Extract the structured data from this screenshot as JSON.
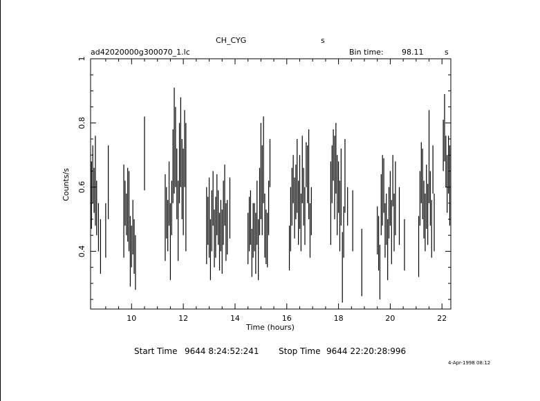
{
  "header": {
    "object": "CH_CYG",
    "object_unit": "s",
    "filename": "ad42020000g300070_1.lc",
    "bin_time_label": "Bin time:",
    "bin_time_value": "98.11",
    "bin_time_unit": "s"
  },
  "footer": {
    "start_label": "Start Time",
    "start_value": "9644  8:24:52:241",
    "stop_label": "Stop Time",
    "stop_value": "9644 22:20:28:996",
    "date_stamp": "4-Apr-1998 08:12"
  },
  "chart_data": {
    "type": "line",
    "xlabel": "Time (hours)",
    "ylabel": "Counts/s",
    "xlim": [
      8.415,
      22.341
    ],
    "ylim": [
      0.22,
      1.0
    ],
    "xticks": [
      10,
      12,
      14,
      16,
      18,
      20,
      22
    ],
    "yticks": [
      0.4,
      0.6,
      0.8,
      1
    ],
    "ytick_labels": [
      "0.4",
      "0.6",
      "0.8",
      "1"
    ],
    "series": [
      {
        "style": "error-bars",
        "points": [
          {
            "x": 8.45,
            "lo": 0.47,
            "hi": 0.68
          },
          {
            "x": 8.5,
            "lo": 0.55,
            "hi": 0.73
          },
          {
            "x": 8.55,
            "lo": 0.52,
            "hi": 0.66
          },
          {
            "x": 8.6,
            "lo": 0.48,
            "hi": 0.76
          },
          {
            "x": 8.65,
            "lo": 0.45,
            "hi": 0.62
          },
          {
            "x": 8.72,
            "lo": 0.4,
            "hi": 0.55
          },
          {
            "x": 8.8,
            "lo": 0.33,
            "hi": 0.5
          },
          {
            "x": 9.0,
            "lo": 0.38,
            "hi": 0.55
          },
          {
            "x": 9.1,
            "lo": 0.5,
            "hi": 0.73
          },
          {
            "x": 9.7,
            "lo": 0.38,
            "hi": 0.67
          },
          {
            "x": 9.75,
            "lo": 0.48,
            "hi": 0.62
          },
          {
            "x": 9.8,
            "lo": 0.45,
            "hi": 0.58
          },
          {
            "x": 9.85,
            "lo": 0.43,
            "hi": 0.66
          },
          {
            "x": 9.9,
            "lo": 0.4,
            "hi": 0.65
          },
          {
            "x": 9.95,
            "lo": 0.29,
            "hi": 0.51
          },
          {
            "x": 10.0,
            "lo": 0.35,
            "hi": 0.48
          },
          {
            "x": 10.05,
            "lo": 0.39,
            "hi": 0.56
          },
          {
            "x": 10.1,
            "lo": 0.33,
            "hi": 0.5
          },
          {
            "x": 10.15,
            "lo": 0.28,
            "hi": 0.45
          },
          {
            "x": 10.5,
            "lo": 0.59,
            "hi": 0.82
          },
          {
            "x": 11.3,
            "lo": 0.37,
            "hi": 0.64
          },
          {
            "x": 11.35,
            "lo": 0.44,
            "hi": 0.6
          },
          {
            "x": 11.4,
            "lo": 0.4,
            "hi": 0.56
          },
          {
            "x": 11.45,
            "lo": 0.48,
            "hi": 0.68
          },
          {
            "x": 11.5,
            "lo": 0.31,
            "hi": 0.55
          },
          {
            "x": 11.55,
            "lo": 0.45,
            "hi": 0.62
          },
          {
            "x": 11.6,
            "lo": 0.55,
            "hi": 0.78
          },
          {
            "x": 11.65,
            "lo": 0.58,
            "hi": 0.91
          },
          {
            "x": 11.7,
            "lo": 0.6,
            "hi": 0.85
          },
          {
            "x": 11.75,
            "lo": 0.5,
            "hi": 0.72
          },
          {
            "x": 11.8,
            "lo": 0.37,
            "hi": 0.62
          },
          {
            "x": 11.85,
            "lo": 0.55,
            "hi": 0.8
          },
          {
            "x": 11.9,
            "lo": 0.6,
            "hi": 0.88
          },
          {
            "x": 11.95,
            "lo": 0.5,
            "hi": 0.75
          },
          {
            "x": 12.0,
            "lo": 0.45,
            "hi": 0.72
          },
          {
            "x": 12.05,
            "lo": 0.6,
            "hi": 0.84
          },
          {
            "x": 12.1,
            "lo": 0.4,
            "hi": 0.8
          },
          {
            "x": 12.9,
            "lo": 0.36,
            "hi": 0.6
          },
          {
            "x": 12.95,
            "lo": 0.42,
            "hi": 0.57
          },
          {
            "x": 13.0,
            "lo": 0.38,
            "hi": 0.63
          },
          {
            "x": 13.05,
            "lo": 0.31,
            "hi": 0.5
          },
          {
            "x": 13.1,
            "lo": 0.4,
            "hi": 0.59
          },
          {
            "x": 13.15,
            "lo": 0.48,
            "hi": 0.65
          },
          {
            "x": 13.2,
            "lo": 0.35,
            "hi": 0.53
          },
          {
            "x": 13.25,
            "lo": 0.38,
            "hi": 0.57
          },
          {
            "x": 13.3,
            "lo": 0.45,
            "hi": 0.64
          },
          {
            "x": 13.35,
            "lo": 0.42,
            "hi": 0.59
          },
          {
            "x": 13.4,
            "lo": 0.34,
            "hi": 0.52
          },
          {
            "x": 13.45,
            "lo": 0.4,
            "hi": 0.56
          },
          {
            "x": 13.5,
            "lo": 0.33,
            "hi": 0.53
          },
          {
            "x": 13.55,
            "lo": 0.42,
            "hi": 0.62
          },
          {
            "x": 13.6,
            "lo": 0.48,
            "hi": 0.67
          },
          {
            "x": 13.65,
            "lo": 0.37,
            "hi": 0.55
          },
          {
            "x": 13.7,
            "lo": 0.39,
            "hi": 0.56
          },
          {
            "x": 13.8,
            "lo": 0.44,
            "hi": 0.63
          },
          {
            "x": 14.5,
            "lo": 0.36,
            "hi": 0.52
          },
          {
            "x": 14.55,
            "lo": 0.4,
            "hi": 0.57
          },
          {
            "x": 14.6,
            "lo": 0.42,
            "hi": 0.59
          },
          {
            "x": 14.65,
            "lo": 0.32,
            "hi": 0.47
          },
          {
            "x": 14.7,
            "lo": 0.38,
            "hi": 0.55
          },
          {
            "x": 14.75,
            "lo": 0.4,
            "hi": 0.55
          },
          {
            "x": 14.8,
            "lo": 0.33,
            "hi": 0.52
          },
          {
            "x": 14.85,
            "lo": 0.42,
            "hi": 0.62
          },
          {
            "x": 14.9,
            "lo": 0.31,
            "hi": 0.5
          },
          {
            "x": 14.95,
            "lo": 0.45,
            "hi": 0.66
          },
          {
            "x": 15.0,
            "lo": 0.5,
            "hi": 0.8
          },
          {
            "x": 15.05,
            "lo": 0.45,
            "hi": 0.73
          },
          {
            "x": 15.1,
            "lo": 0.55,
            "hi": 0.82
          },
          {
            "x": 15.15,
            "lo": 0.38,
            "hi": 0.58
          },
          {
            "x": 15.2,
            "lo": 0.36,
            "hi": 0.53
          },
          {
            "x": 15.25,
            "lo": 0.35,
            "hi": 0.52
          },
          {
            "x": 15.3,
            "lo": 0.45,
            "hi": 0.62
          },
          {
            "x": 15.35,
            "lo": 0.6,
            "hi": 0.75
          },
          {
            "x": 16.1,
            "lo": 0.34,
            "hi": 0.48
          },
          {
            "x": 16.15,
            "lo": 0.4,
            "hi": 0.6
          },
          {
            "x": 16.2,
            "lo": 0.48,
            "hi": 0.66
          },
          {
            "x": 16.25,
            "lo": 0.55,
            "hi": 0.7
          },
          {
            "x": 16.3,
            "lo": 0.44,
            "hi": 0.63
          },
          {
            "x": 16.35,
            "lo": 0.5,
            "hi": 0.67
          },
          {
            "x": 16.4,
            "lo": 0.52,
            "hi": 0.75
          },
          {
            "x": 16.45,
            "lo": 0.42,
            "hi": 0.62
          },
          {
            "x": 16.5,
            "lo": 0.47,
            "hi": 0.7
          },
          {
            "x": 16.55,
            "lo": 0.4,
            "hi": 0.58
          },
          {
            "x": 16.6,
            "lo": 0.55,
            "hi": 0.76
          },
          {
            "x": 16.65,
            "lo": 0.48,
            "hi": 0.66
          },
          {
            "x": 16.7,
            "lo": 0.42,
            "hi": 0.6
          },
          {
            "x": 16.75,
            "lo": 0.6,
            "hi": 0.74
          },
          {
            "x": 16.8,
            "lo": 0.55,
            "hi": 0.73
          },
          {
            "x": 16.85,
            "lo": 0.5,
            "hi": 0.78
          },
          {
            "x": 16.9,
            "lo": 0.38,
            "hi": 0.55
          },
          {
            "x": 16.95,
            "lo": 0.45,
            "hi": 0.6
          },
          {
            "x": 17.7,
            "lo": 0.42,
            "hi": 0.68
          },
          {
            "x": 17.75,
            "lo": 0.55,
            "hi": 0.73
          },
          {
            "x": 17.8,
            "lo": 0.62,
            "hi": 0.78
          },
          {
            "x": 17.85,
            "lo": 0.5,
            "hi": 0.76
          },
          {
            "x": 17.9,
            "lo": 0.58,
            "hi": 0.8
          },
          {
            "x": 17.95,
            "lo": 0.45,
            "hi": 0.7
          },
          {
            "x": 18.0,
            "lo": 0.52,
            "hi": 0.68
          },
          {
            "x": 18.05,
            "lo": 0.4,
            "hi": 0.62
          },
          {
            "x": 18.1,
            "lo": 0.48,
            "hi": 0.72
          },
          {
            "x": 18.15,
            "lo": 0.24,
            "hi": 0.46
          },
          {
            "x": 18.2,
            "lo": 0.38,
            "hi": 0.54
          },
          {
            "x": 18.25,
            "lo": 0.52,
            "hi": 0.75
          },
          {
            "x": 18.35,
            "lo": 0.48,
            "hi": 0.6
          },
          {
            "x": 18.55,
            "lo": 0.4,
            "hi": 0.59
          },
          {
            "x": 18.9,
            "lo": 0.26,
            "hi": 0.47
          },
          {
            "x": 19.5,
            "lo": 0.39,
            "hi": 0.54
          },
          {
            "x": 19.55,
            "lo": 0.34,
            "hi": 0.51
          },
          {
            "x": 19.6,
            "lo": 0.25,
            "hi": 0.42
          },
          {
            "x": 19.65,
            "lo": 0.45,
            "hi": 0.64
          },
          {
            "x": 19.7,
            "lo": 0.48,
            "hi": 0.7
          },
          {
            "x": 19.75,
            "lo": 0.52,
            "hi": 0.69
          },
          {
            "x": 19.8,
            "lo": 0.38,
            "hi": 0.55
          },
          {
            "x": 19.85,
            "lo": 0.42,
            "hi": 0.58
          },
          {
            "x": 19.9,
            "lo": 0.31,
            "hi": 0.5
          },
          {
            "x": 19.95,
            "lo": 0.44,
            "hi": 0.6
          },
          {
            "x": 20.0,
            "lo": 0.48,
            "hi": 0.65
          },
          {
            "x": 20.05,
            "lo": 0.36,
            "hi": 0.56
          },
          {
            "x": 20.1,
            "lo": 0.54,
            "hi": 0.7
          },
          {
            "x": 20.15,
            "lo": 0.4,
            "hi": 0.58
          },
          {
            "x": 20.2,
            "lo": 0.45,
            "hi": 0.68
          },
          {
            "x": 20.35,
            "lo": 0.42,
            "hi": 0.6
          },
          {
            "x": 20.55,
            "lo": 0.34,
            "hi": 0.5
          },
          {
            "x": 21.1,
            "lo": 0.32,
            "hi": 0.51
          },
          {
            "x": 21.15,
            "lo": 0.48,
            "hi": 0.65
          },
          {
            "x": 21.2,
            "lo": 0.55,
            "hi": 0.74
          },
          {
            "x": 21.25,
            "lo": 0.5,
            "hi": 0.72
          },
          {
            "x": 21.3,
            "lo": 0.44,
            "hi": 0.62
          },
          {
            "x": 21.35,
            "lo": 0.4,
            "hi": 0.58
          },
          {
            "x": 21.4,
            "lo": 0.47,
            "hi": 0.67
          },
          {
            "x": 21.45,
            "lo": 0.42,
            "hi": 0.61
          },
          {
            "x": 21.5,
            "lo": 0.55,
            "hi": 0.84
          },
          {
            "x": 21.55,
            "lo": 0.48,
            "hi": 0.65
          },
          {
            "x": 21.6,
            "lo": 0.38,
            "hi": 0.56
          },
          {
            "x": 21.65,
            "lo": 0.58,
            "hi": 0.73
          },
          {
            "x": 21.7,
            "lo": 0.4,
            "hi": 0.58
          },
          {
            "x": 22.05,
            "lo": 0.65,
            "hi": 0.81
          },
          {
            "x": 22.1,
            "lo": 0.68,
            "hi": 0.89
          },
          {
            "x": 22.15,
            "lo": 0.6,
            "hi": 0.76
          },
          {
            "x": 22.2,
            "lo": 0.52,
            "hi": 0.7
          },
          {
            "x": 22.25,
            "lo": 0.58,
            "hi": 0.76
          },
          {
            "x": 22.3,
            "lo": 0.48,
            "hi": 0.73
          }
        ]
      }
    ]
  }
}
